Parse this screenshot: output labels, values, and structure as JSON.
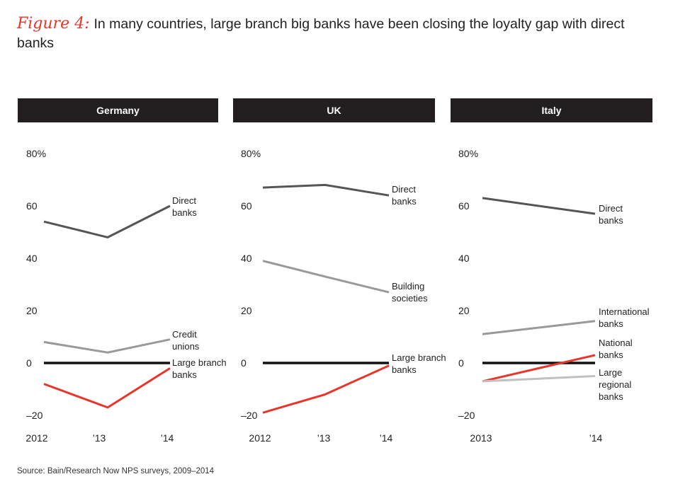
{
  "title": {
    "figure_label": "Figure 4:",
    "text": "In many countries, large branch big banks have been closing the loyalty gap with direct banks"
  },
  "source": "Source: Bain/Research Now NPS surveys, 2009–2014",
  "colors": {
    "header_bg": "#231f20",
    "direct": "#555555",
    "secondary": "#999999",
    "light": "#c0c0c0",
    "zero": "#111111",
    "red": "#e8352a"
  },
  "chart_data": [
    {
      "type": "line",
      "title": "Germany",
      "x": [
        "2012",
        "’13",
        "’14"
      ],
      "ylim": [
        -20,
        80
      ],
      "yticks": [
        "80%",
        "60",
        "40",
        "20",
        "0",
        "–20"
      ],
      "ytick_values": [
        80,
        60,
        40,
        20,
        0,
        -20
      ],
      "series": [
        {
          "name": "Direct banks",
          "label_lines": [
            "Direct",
            "banks"
          ],
          "values": [
            54,
            48,
            60
          ],
          "color": "direct"
        },
        {
          "name": "Credit unions",
          "label_lines": [
            "Credit",
            "unions"
          ],
          "values": [
            8,
            4,
            9
          ],
          "color": "secondary"
        },
        {
          "name": "Large branch banks",
          "label_lines": [
            "Large branch",
            "banks"
          ],
          "values": [
            -8,
            -17,
            -2
          ],
          "color": "red"
        }
      ]
    },
    {
      "type": "line",
      "title": "UK",
      "x": [
        "2012",
        "’13",
        "’14"
      ],
      "ylim": [
        -20,
        80
      ],
      "yticks": [
        "80%",
        "60",
        "40",
        "20",
        "0",
        "–20"
      ],
      "ytick_values": [
        80,
        60,
        40,
        20,
        0,
        -20
      ],
      "series": [
        {
          "name": "Direct banks",
          "label_lines": [
            "Direct",
            "banks"
          ],
          "values": [
            67,
            68,
            64
          ],
          "color": "direct"
        },
        {
          "name": "Building societies",
          "label_lines": [
            "Building",
            "societies"
          ],
          "values": [
            39,
            33,
            27
          ],
          "color": "secondary"
        },
        {
          "name": "Large branch banks",
          "label_lines": [
            "Large branch",
            "banks"
          ],
          "values": [
            -19,
            -12,
            -1
          ],
          "color": "red"
        }
      ]
    },
    {
      "type": "line",
      "title": "Italy",
      "x": [
        "2013",
        "’14"
      ],
      "ylim": [
        -20,
        80
      ],
      "yticks": [
        "80%",
        "60",
        "40",
        "20",
        "0",
        "–20"
      ],
      "ytick_values": [
        80,
        60,
        40,
        20,
        0,
        -20
      ],
      "series": [
        {
          "name": "Direct banks",
          "label_lines": [
            "Direct",
            "banks"
          ],
          "values": [
            63,
            57
          ],
          "color": "direct"
        },
        {
          "name": "International banks",
          "label_lines": [
            "International",
            "banks"
          ],
          "values": [
            11,
            16
          ],
          "color": "secondary"
        },
        {
          "name": "National banks",
          "label_lines": [
            "National",
            "banks"
          ],
          "values": [
            -7,
            3
          ],
          "color": "red"
        },
        {
          "name": "Large regional banks",
          "label_lines": [
            "Large",
            "regional",
            "banks"
          ],
          "values": [
            -7,
            -5
          ],
          "color": "light"
        }
      ]
    }
  ]
}
